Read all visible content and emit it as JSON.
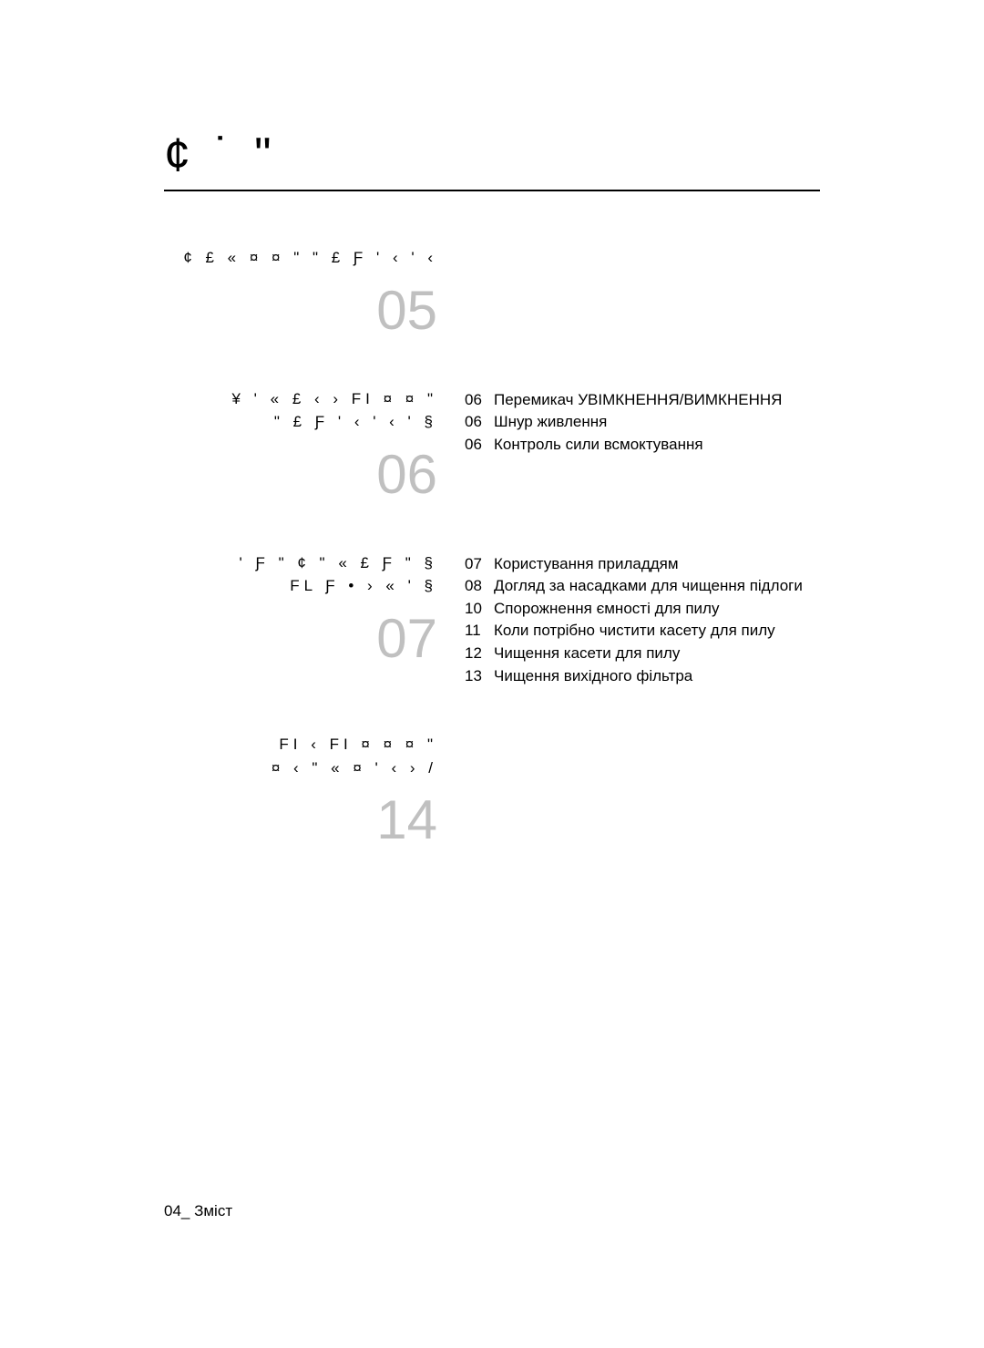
{
  "title": "¢ ˙      ʺ",
  "sections": [
    {
      "heading": "¢ £ « ¤ ¤ \" \" £ ƒ ' ‹ ' ‹",
      "number": "05",
      "items": []
    },
    {
      "heading_line1": "¥ ' « £ ‹ › ﬁ    ¤ ¤ \"",
      "heading_line2": "\" £ ƒ ' ‹ ' ‹ ' §",
      "number": "06",
      "items": [
        {
          "num": "06",
          "label": "Перемикач УВІМКНЕННЯ/ВИМКНЕННЯ"
        },
        {
          "num": "06",
          "label": "Шнур живлення"
        },
        {
          "num": "06",
          "label": "Контроль сили всмоктування"
        }
      ]
    },
    {
      "heading_line1": "'   ƒ \"     ¢   \" « £ ƒ      \" §",
      "heading_line2": "ﬂ    ƒ • › « ' §",
      "number": "07",
      "items": [
        {
          "num": "07",
          "label": "Користування приладдям"
        },
        {
          "num": "08",
          "label": "Догляд за насадками для чищення підлоги"
        },
        {
          "num": "10",
          "label": "Спорожнення ємності для пилу"
        },
        {
          "num": "11",
          "label": "Коли потрібно чистити касету для пилу"
        },
        {
          "num": "12",
          "label": "Чищення касети для пилу"
        },
        {
          "num": "13",
          "label": "Чищення вихідного фільтра"
        }
      ]
    },
    {
      "heading_line1": "ﬁ ‹ ﬁ ¤   ¤ ¤ \"",
      "heading_line2": "¤   ‹ \" «     ¤ ' ‹ ›   /",
      "number": "14",
      "items": []
    }
  ],
  "footer": "04_ Зміст"
}
